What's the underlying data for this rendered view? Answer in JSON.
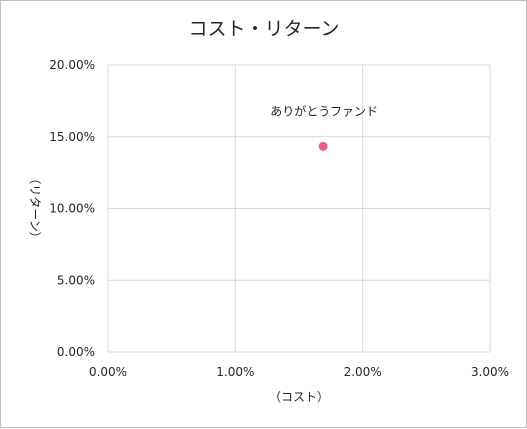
{
  "chart_data": {
    "type": "scatter",
    "title": "コスト・リターン",
    "xlabel": "（コスト）",
    "ylabel": "（リターン）",
    "xlim": [
      0,
      0.03
    ],
    "ylim": [
      0,
      0.2
    ],
    "x_ticks": [
      {
        "value": 0.0,
        "label": "0.00%"
      },
      {
        "value": 0.01,
        "label": "1.00%"
      },
      {
        "value": 0.02,
        "label": "2.00%"
      },
      {
        "value": 0.03,
        "label": "3.00%"
      }
    ],
    "y_ticks": [
      {
        "value": 0.0,
        "label": "0.00%"
      },
      {
        "value": 0.05,
        "label": "5.00%"
      },
      {
        "value": 0.1,
        "label": "10.00%"
      },
      {
        "value": 0.15,
        "label": "15.00%"
      },
      {
        "value": 0.2,
        "label": "20.00%"
      }
    ],
    "grid": true,
    "points": [
      {
        "x": 0.0169,
        "y": 0.1433,
        "label": "ありがとうファンド",
        "color": "#e8608a"
      }
    ],
    "colors": {
      "grid": "#d9d9d9",
      "text": "#262626",
      "border": "#bfbfbf"
    }
  }
}
